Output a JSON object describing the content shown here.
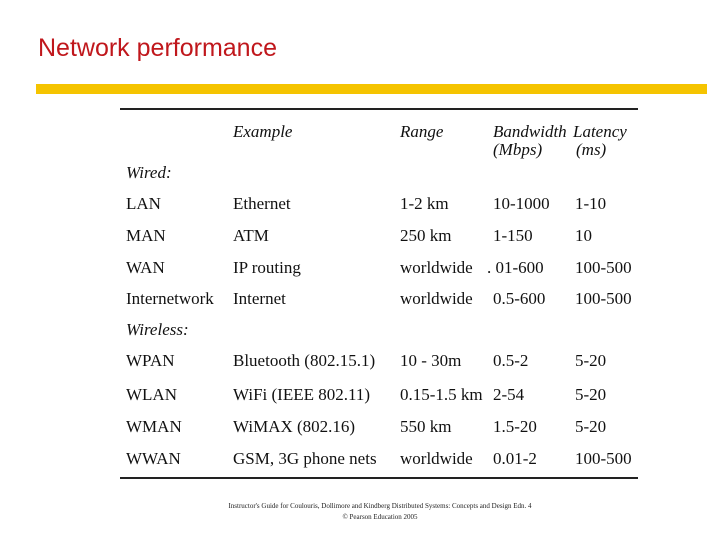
{
  "slide": {
    "title": "Network performance",
    "accent_color": "#f5c400",
    "title_color": "#c0171c"
  },
  "table": {
    "headers": {
      "example": "Example",
      "range": "Range",
      "bandwidth": "Bandwidth",
      "bandwidth_unit": "(Mbps)",
      "latency": "Latency",
      "latency_unit": "(ms)"
    },
    "wired_label": "Wired:",
    "wireless_label": "Wireless:",
    "wired": [
      {
        "type": "LAN",
        "example": "Ethernet",
        "range": "1-2 km",
        "bandwidth": "10-1000",
        "latency": "1-10"
      },
      {
        "type": "MAN",
        "example": "ATM",
        "range": "250 km",
        "bandwidth": "1-150",
        "latency": "10"
      },
      {
        "type": "WAN",
        "example": "IP routing",
        "range": "worldwide",
        "bandwidth": ". 01-600",
        "latency": "100-500"
      },
      {
        "type": "Internetwork",
        "example": "Internet",
        "range": "worldwide",
        "bandwidth": "0.5-600",
        "latency": "100-500"
      }
    ],
    "wireless": [
      {
        "type": "WPAN",
        "example": "Bluetooth (802.15.1)",
        "range": "10 - 30m",
        "bandwidth": "0.5-2",
        "latency": "5-20"
      },
      {
        "type": "WLAN",
        "example": "WiFi (IEEE 802.11)",
        "range": "0.15-1.5 km",
        "bandwidth": "2-54",
        "latency": "5-20"
      },
      {
        "type": "WMAN",
        "example": "WiMAX (802.16)",
        "range": "550 km",
        "bandwidth": "1.5-20",
        "latency": "5-20"
      },
      {
        "type": "WWAN",
        "example": "GSM, 3G phone nets",
        "range": "worldwide",
        "bandwidth": "0.01-2",
        "latency": "100-500"
      }
    ]
  },
  "footer": {
    "line1": "Instructor's Guide for Coulouris, Dollimore and Kindberg Distributed Systems: Concepts and Design Edn. 4",
    "line2": "© Pearson Education 2005"
  }
}
